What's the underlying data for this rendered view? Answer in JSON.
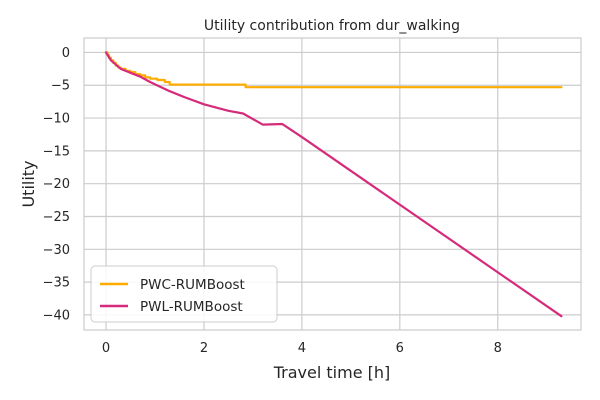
{
  "chart_data": {
    "type": "line",
    "title": "Utility contribution from dur_walking",
    "xlabel": "Travel time [h]",
    "ylabel": "Utility",
    "xlim": [
      -0.45,
      9.7
    ],
    "ylim": [
      -42.3,
      2.2
    ],
    "xticks": [
      0,
      2,
      4,
      6,
      8
    ],
    "yticks": [
      0,
      -5,
      -10,
      -15,
      -20,
      -25,
      -30,
      -35,
      -40
    ],
    "grid": true,
    "legend_position": "lower-left",
    "series": [
      {
        "name": "PWC-RUMBoost",
        "color": "#ffac00",
        "step": true,
        "x": [
          0,
          0.03,
          0.06,
          0.1,
          0.15,
          0.2,
          0.25,
          0.3,
          0.4,
          0.5,
          0.6,
          0.7,
          0.8,
          0.9,
          1.05,
          1.2,
          1.3,
          2.85,
          9.3
        ],
        "y": [
          0,
          -0.4,
          -0.8,
          -1.2,
          -1.6,
          -2.0,
          -2.3,
          -2.5,
          -2.8,
          -3.0,
          -3.3,
          -3.5,
          -3.8,
          -4.0,
          -4.2,
          -4.5,
          -4.9,
          -5.3,
          -5.3
        ]
      },
      {
        "name": "PWL-RUMBoost",
        "color": "#d62a7b",
        "step": false,
        "x": [
          0,
          0.1,
          0.3,
          0.5,
          0.7,
          0.9,
          1.1,
          1.3,
          1.6,
          2.0,
          2.5,
          2.8,
          3.2,
          3.6,
          4.0,
          9.3
        ],
        "y": [
          0,
          -1.2,
          -2.5,
          -3.1,
          -3.7,
          -4.5,
          -5.2,
          -5.9,
          -6.8,
          -7.9,
          -8.9,
          -9.3,
          -11.0,
          -10.9,
          -12.9,
          -40.2
        ]
      }
    ]
  }
}
